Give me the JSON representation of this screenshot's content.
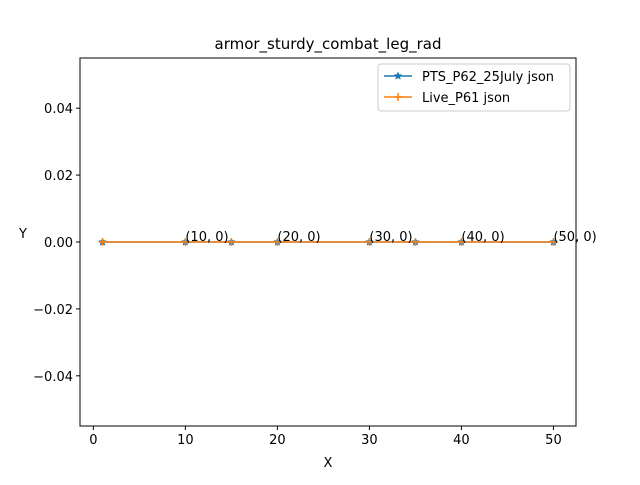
{
  "chart_data": {
    "type": "line",
    "title": "armor_sturdy_combat_leg_rad",
    "xlabel": "X",
    "ylabel": "Y",
    "xlim": [
      -1.45,
      52.45
    ],
    "ylim": [
      -0.055,
      0.055
    ],
    "xticks": [
      0,
      10,
      20,
      30,
      40,
      50
    ],
    "xtick_labels": [
      "0",
      "10",
      "20",
      "30",
      "40",
      "50"
    ],
    "yticks": [
      -0.04,
      -0.02,
      0.0,
      0.02,
      0.04
    ],
    "ytick_labels": [
      "−0.04",
      "−0.02",
      "0.00",
      "0.02",
      "0.04"
    ],
    "legend_position": "top-right",
    "grid": false,
    "series": [
      {
        "name": "PTS_P62_25July json",
        "color": "#1f77b4",
        "marker": "star",
        "x": [
          1,
          10,
          15,
          20,
          30,
          35,
          40,
          50
        ],
        "y": [
          0,
          0,
          0,
          0,
          0,
          0,
          0,
          0
        ]
      },
      {
        "name": "Live_P61 json",
        "color": "#ff7f0e",
        "marker": "plus",
        "x": [
          1,
          10,
          15,
          20,
          30,
          35,
          40,
          50
        ],
        "y": [
          0,
          0,
          0,
          0,
          0,
          0,
          0,
          0
        ]
      }
    ],
    "annotations": [
      {
        "text": "(10, 0)",
        "x": 10,
        "y": 0
      },
      {
        "text": "(20, 0)",
        "x": 20,
        "y": 0
      },
      {
        "text": "(30, 0)",
        "x": 30,
        "y": 0
      },
      {
        "text": "(40, 0)",
        "x": 40,
        "y": 0
      },
      {
        "text": "(50, 0)",
        "x": 50,
        "y": 0
      }
    ]
  }
}
